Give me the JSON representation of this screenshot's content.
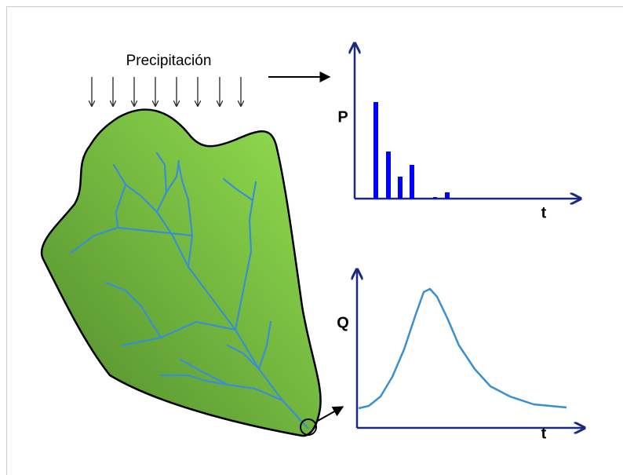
{
  "labels": {
    "precipitation": "Precipitación",
    "p_axis": "P",
    "p_time_axis": "t",
    "q_axis": "Q",
    "q_time_axis": "t"
  }
}
